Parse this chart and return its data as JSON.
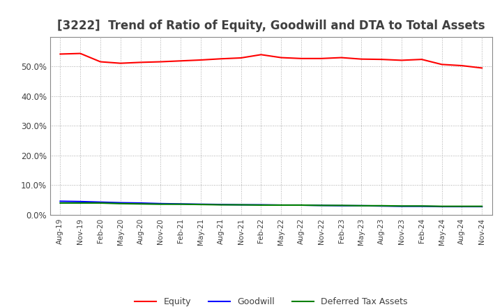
{
  "title": "[3222]  Trend of Ratio of Equity, Goodwill and DTA to Total Assets",
  "x_labels": [
    "Aug-19",
    "Nov-19",
    "Feb-20",
    "May-20",
    "Aug-20",
    "Nov-20",
    "Feb-21",
    "May-21",
    "Aug-21",
    "Nov-21",
    "Feb-22",
    "May-22",
    "Aug-22",
    "Nov-22",
    "Feb-23",
    "May-23",
    "Aug-23",
    "Nov-23",
    "Feb-24",
    "May-24",
    "Aug-24",
    "Nov-24"
  ],
  "equity": [
    0.542,
    0.544,
    0.516,
    0.511,
    0.514,
    0.516,
    0.519,
    0.522,
    0.526,
    0.529,
    0.54,
    0.53,
    0.527,
    0.527,
    0.53,
    0.525,
    0.524,
    0.521,
    0.524,
    0.507,
    0.503,
    0.495
  ],
  "goodwill": [
    0.046,
    0.045,
    0.043,
    0.041,
    0.04,
    0.038,
    0.037,
    0.036,
    0.035,
    0.034,
    0.034,
    0.033,
    0.033,
    0.032,
    0.031,
    0.031,
    0.03,
    0.029,
    0.029,
    0.028,
    0.028,
    0.028
  ],
  "dta": [
    0.04,
    0.04,
    0.04,
    0.038,
    0.037,
    0.036,
    0.036,
    0.035,
    0.034,
    0.034,
    0.033,
    0.033,
    0.033,
    0.032,
    0.032,
    0.031,
    0.031,
    0.03,
    0.03,
    0.029,
    0.029,
    0.029
  ],
  "equity_color": "#ff0000",
  "goodwill_color": "#0000ff",
  "dta_color": "#008000",
  "background_color": "#ffffff",
  "grid_color": "#aaaaaa",
  "ylim": [
    0.0,
    0.6
  ],
  "yticks": [
    0.0,
    0.1,
    0.2,
    0.3,
    0.4,
    0.5
  ],
  "title_fontsize": 12,
  "legend_labels": [
    "Equity",
    "Goodwill",
    "Deferred Tax Assets"
  ],
  "text_color": "#404040"
}
